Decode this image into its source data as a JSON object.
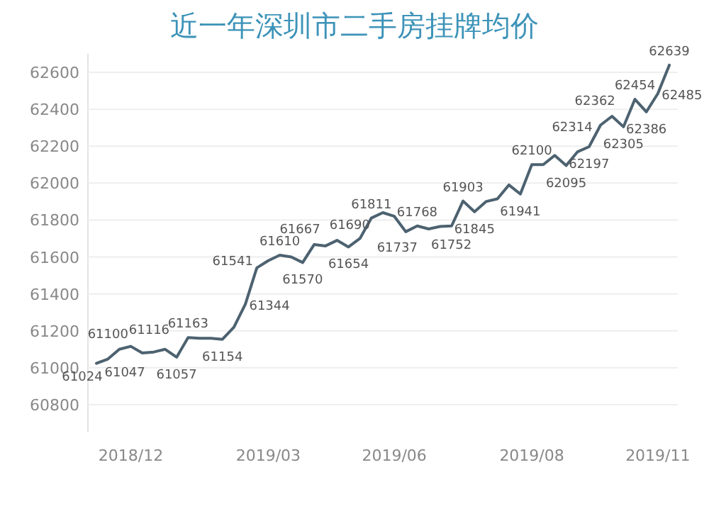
{
  "chart_data": {
    "type": "line",
    "title": "近一年深圳市二手房挂牌均价",
    "categories": [
      null,
      null,
      null,
      "2018/12",
      null,
      null,
      null,
      null,
      null,
      null,
      null,
      null,
      null,
      null,
      null,
      "2019/03",
      null,
      null,
      null,
      null,
      null,
      null,
      null,
      null,
      null,
      null,
      "2019/06",
      null,
      null,
      null,
      null,
      null,
      null,
      null,
      null,
      null,
      null,
      null,
      "2019/08",
      null,
      null,
      null,
      null,
      null,
      null,
      null,
      null,
      null,
      null,
      "2019/11",
      null
    ],
    "series": [
      {
        "color": "#4d6270",
        "values": [
          61024,
          61047,
          61100,
          61116,
          61080,
          61085,
          61100,
          61057,
          61163,
          61160,
          61160,
          61154,
          61220,
          61344,
          61541,
          61580,
          61610,
          61600,
          61570,
          61667,
          61660,
          61690,
          61654,
          61700,
          61811,
          61840,
          61820,
          61737,
          61768,
          61752,
          61765,
          61768,
          61903,
          61845,
          61900,
          61915,
          61990,
          61941,
          62100,
          62100,
          62150,
          62095,
          62170,
          62197,
          62314,
          62362,
          62305,
          62454,
          62386,
          62485,
          62639
        ],
        "value_labels": [
          "61024",
          "61047",
          "61100",
          "61116",
          null,
          null,
          null,
          "61057",
          "61163",
          null,
          null,
          "61154",
          null,
          "61344",
          "61541",
          null,
          "61610",
          null,
          "61570",
          "61667",
          null,
          "61690",
          "61654",
          null,
          "61811",
          null,
          null,
          "61737",
          "61768",
          "61752",
          null,
          null,
          "61903",
          "61845",
          null,
          null,
          null,
          "61941",
          "62100",
          null,
          null,
          "62095",
          null,
          "62197",
          "62314",
          "62362",
          "62305",
          "62454",
          "62386",
          "62485",
          "62639"
        ]
      }
    ],
    "ylim": [
      60650,
      62700
    ],
    "yticks": [
      60800,
      61000,
      61200,
      61400,
      61600,
      61800,
      62000,
      62200,
      62400,
      62600
    ],
    "grid": "y",
    "marker": "none",
    "line_style": "solid"
  }
}
